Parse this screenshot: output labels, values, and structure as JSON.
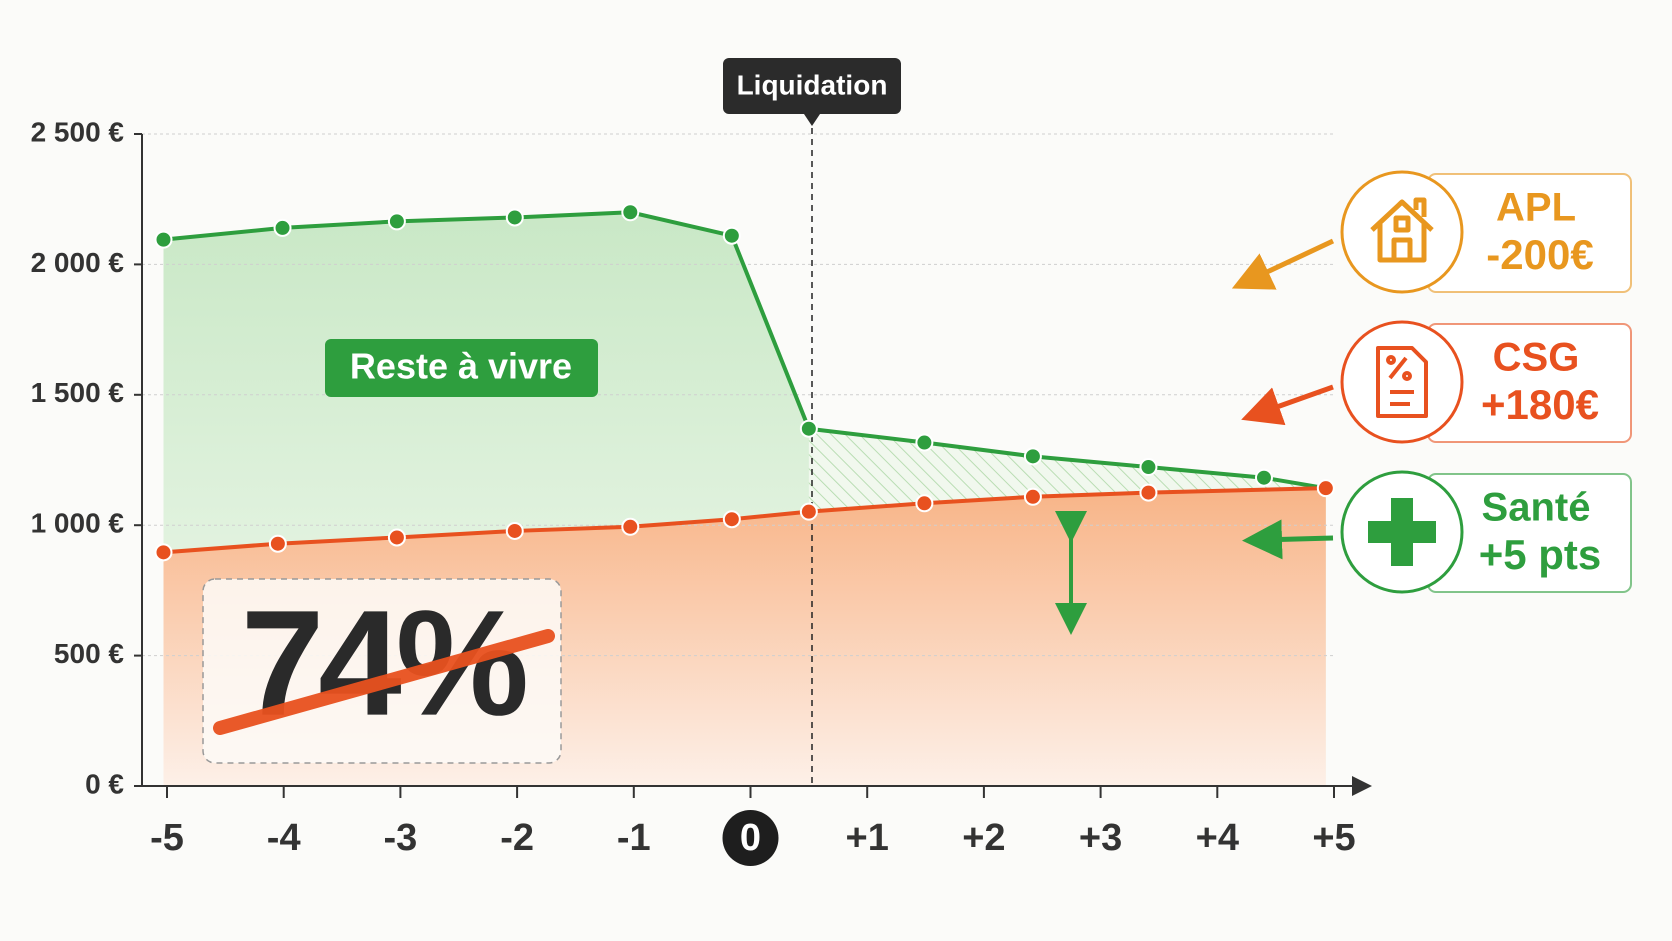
{
  "chart_data": {
    "type": "line",
    "xlim": [
      -5,
      5
    ],
    "xticks": [
      -5,
      -4,
      -3,
      -2,
      -1,
      0,
      {
        "value": 1,
        "label": "+1"
      },
      {
        "value": 2,
        "label": "+2"
      },
      {
        "value": 3,
        "label": "+3"
      },
      {
        "value": 4,
        "label": "+4"
      },
      {
        "value": 5,
        "label": "+5"
      }
    ],
    "ylim": [
      0,
      2500
    ],
    "yticks": [
      {
        "value": 0,
        "label": "0 €"
      },
      {
        "value": 500,
        "label": "500 €"
      },
      {
        "value": 1000,
        "label": "1 000 €"
      },
      {
        "value": 1500,
        "label": "1 500 €"
      },
      {
        "value": 2000,
        "label": "2 000 €"
      },
      {
        "value": 2500,
        "label": "2 500 €"
      }
    ],
    "grid": true,
    "series": [
      {
        "color": "#2e9e3e",
        "x": [
          -5.03,
          -4.01,
          -3.03,
          -2.02,
          -1.03,
          -0.16,
          0.5,
          1.49,
          2.42,
          3.41,
          4.4,
          4.93
        ],
        "values": [
          2095,
          2140,
          2165,
          2180,
          2200,
          2110,
          1370,
          1317,
          1264,
          1223,
          1182,
          1142
        ]
      },
      {
        "color": "#e8511f",
        "x": [
          -5.03,
          -4.05,
          -3.03,
          -2.02,
          -1.03,
          -0.16,
          0.5,
          1.49,
          2.42,
          3.41,
          4.93
        ],
        "values": [
          896,
          929,
          953,
          978,
          994,
          1023,
          1052,
          1084,
          1109,
          1125,
          1142
        ]
      }
    ],
    "annotations": {
      "event": "Liquidation",
      "area_label": "Reste à vivre",
      "rate": "74%",
      "callouts": [
        {
          "title": "APL",
          "detail": "-200€",
          "color": "#e8971f"
        },
        {
          "title": "CSG",
          "detail": "+180€",
          "color": "#e8511f"
        },
        {
          "title": "Santé",
          "detail": "+5 pts",
          "color": "#2e9e3e"
        }
      ]
    }
  }
}
